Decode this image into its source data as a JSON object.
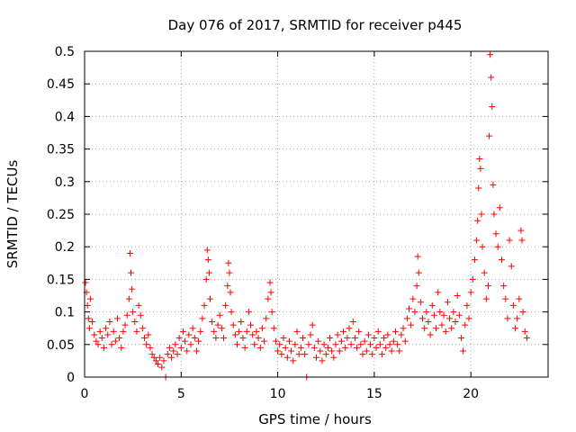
{
  "chart_data": {
    "type": "scatter",
    "title": "Day 076 of 2017, SRMTID for receiver p445",
    "xlabel": "GPS time / hours",
    "ylabel": "SRMTID / TECUs",
    "xlim": [
      0,
      24
    ],
    "ylim": [
      0,
      0.5
    ],
    "xticks": [
      0,
      5,
      10,
      15,
      20
    ],
    "xtick_labels": [
      "0",
      "5",
      "10",
      "15",
      "20"
    ],
    "yticks": [
      0,
      0.05,
      0.1,
      0.15,
      0.2,
      0.25,
      0.3,
      0.35,
      0.4,
      0.45,
      0.5
    ],
    "ytick_labels": [
      "0",
      "0.05",
      "0.1",
      "0.15",
      "0.2",
      "0.25",
      "0.3",
      "0.35",
      "0.4",
      "0.45",
      "0.5"
    ],
    "grid": true,
    "marker": "+",
    "series": [
      {
        "name": "SRMTID",
        "color": "#ff0000",
        "points": [
          [
            0.05,
            0.145
          ],
          [
            0.1,
            0.13
          ],
          [
            0.15,
            0.11
          ],
          [
            0.2,
            0.09
          ],
          [
            0.25,
            0.075
          ],
          [
            0.3,
            0.12
          ],
          [
            0.4,
            0.085
          ],
          [
            0.5,
            0.065
          ],
          [
            0.6,
            0.055
          ],
          [
            0.7,
            0.05
          ],
          [
            0.8,
            0.07
          ],
          [
            0.9,
            0.06
          ],
          [
            1.0,
            0.045
          ],
          [
            1.1,
            0.075
          ],
          [
            1.2,
            0.065
          ],
          [
            1.3,
            0.085
          ],
          [
            1.4,
            0.05
          ],
          [
            1.5,
            0.07
          ],
          [
            1.6,
            0.055
          ],
          [
            1.7,
            0.09
          ],
          [
            1.8,
            0.06
          ],
          [
            1.9,
            0.045
          ],
          [
            2.0,
            0.07
          ],
          [
            2.1,
            0.08
          ],
          [
            2.2,
            0.095
          ],
          [
            2.3,
            0.12
          ],
          [
            2.35,
            0.19
          ],
          [
            2.4,
            0.16
          ],
          [
            2.45,
            0.135
          ],
          [
            2.5,
            0.1
          ],
          [
            2.6,
            0.085
          ],
          [
            2.7,
            0.07
          ],
          [
            2.8,
            0.11
          ],
          [
            2.9,
            0.095
          ],
          [
            3.0,
            0.075
          ],
          [
            3.1,
            0.06
          ],
          [
            3.2,
            0.05
          ],
          [
            3.3,
            0.065
          ],
          [
            3.4,
            0.045
          ],
          [
            3.5,
            0.035
          ],
          [
            3.6,
            0.03
          ],
          [
            3.7,
            0.025
          ],
          [
            3.8,
            0.02
          ],
          [
            3.9,
            0.03
          ],
          [
            4.0,
            0.015
          ],
          [
            4.1,
            0.025
          ],
          [
            4.2,
            0.0
          ],
          [
            4.3,
            0.035
          ],
          [
            4.4,
            0.045
          ],
          [
            4.5,
            0.03
          ],
          [
            4.6,
            0.04
          ],
          [
            4.7,
            0.05
          ],
          [
            4.8,
            0.035
          ],
          [
            4.9,
            0.06
          ],
          [
            5.0,
            0.045
          ],
          [
            5.1,
            0.07
          ],
          [
            5.2,
            0.055
          ],
          [
            5.3,
            0.04
          ],
          [
            5.4,
            0.065
          ],
          [
            5.5,
            0.05
          ],
          [
            5.6,
            0.075
          ],
          [
            5.7,
            0.06
          ],
          [
            5.8,
            0.04
          ],
          [
            5.9,
            0.055
          ],
          [
            6.0,
            0.07
          ],
          [
            6.1,
            0.09
          ],
          [
            6.2,
            0.11
          ],
          [
            6.3,
            0.15
          ],
          [
            6.35,
            0.195
          ],
          [
            6.4,
            0.18
          ],
          [
            6.45,
            0.16
          ],
          [
            6.5,
            0.12
          ],
          [
            6.6,
            0.085
          ],
          [
            6.7,
            0.07
          ],
          [
            6.8,
            0.06
          ],
          [
            6.9,
            0.08
          ],
          [
            7.0,
            0.095
          ],
          [
            7.1,
            0.075
          ],
          [
            7.2,
            0.06
          ],
          [
            7.3,
            0.11
          ],
          [
            7.4,
            0.14
          ],
          [
            7.45,
            0.175
          ],
          [
            7.5,
            0.16
          ],
          [
            7.55,
            0.13
          ],
          [
            7.6,
            0.1
          ],
          [
            7.7,
            0.08
          ],
          [
            7.8,
            0.065
          ],
          [
            7.9,
            0.05
          ],
          [
            8.0,
            0.07
          ],
          [
            8.1,
            0.085
          ],
          [
            8.2,
            0.06
          ],
          [
            8.3,
            0.045
          ],
          [
            8.4,
            0.07
          ],
          [
            8.5,
            0.1
          ],
          [
            8.6,
            0.08
          ],
          [
            8.7,
            0.065
          ],
          [
            8.8,
            0.05
          ],
          [
            8.9,
            0.07
          ],
          [
            9.0,
            0.06
          ],
          [
            9.1,
            0.045
          ],
          [
            9.2,
            0.075
          ],
          [
            9.3,
            0.055
          ],
          [
            9.4,
            0.09
          ],
          [
            9.5,
            0.12
          ],
          [
            9.6,
            0.145
          ],
          [
            9.65,
            0.13
          ],
          [
            9.7,
            0.1
          ],
          [
            9.8,
            0.075
          ],
          [
            9.9,
            0.055
          ],
          [
            10.0,
            0.04
          ],
          [
            10.1,
            0.05
          ],
          [
            10.2,
            0.035
          ],
          [
            10.3,
            0.06
          ],
          [
            10.4,
            0.045
          ],
          [
            10.5,
            0.03
          ],
          [
            10.6,
            0.055
          ],
          [
            10.7,
            0.04
          ],
          [
            10.8,
            0.025
          ],
          [
            10.9,
            0.05
          ],
          [
            11.0,
            0.07
          ],
          [
            11.1,
            0.035
          ],
          [
            11.2,
            0.045
          ],
          [
            11.3,
            0.06
          ],
          [
            11.4,
            0.035
          ],
          [
            11.5,
            0.0
          ],
          [
            11.6,
            0.05
          ],
          [
            11.7,
            0.065
          ],
          [
            11.8,
            0.08
          ],
          [
            11.9,
            0.045
          ],
          [
            12.0,
            0.03
          ],
          [
            12.1,
            0.055
          ],
          [
            12.2,
            0.04
          ],
          [
            12.3,
            0.025
          ],
          [
            12.4,
            0.05
          ],
          [
            12.5,
            0.035
          ],
          [
            12.6,
            0.045
          ],
          [
            12.7,
            0.06
          ],
          [
            12.8,
            0.04
          ],
          [
            12.9,
            0.03
          ],
          [
            13.0,
            0.05
          ],
          [
            13.1,
            0.065
          ],
          [
            13.2,
            0.04
          ],
          [
            13.3,
            0.055
          ],
          [
            13.4,
            0.07
          ],
          [
            13.5,
            0.045
          ],
          [
            13.6,
            0.06
          ],
          [
            13.7,
            0.075
          ],
          [
            13.8,
            0.05
          ],
          [
            13.9,
            0.085
          ],
          [
            14.0,
            0.06
          ],
          [
            14.1,
            0.045
          ],
          [
            14.2,
            0.07
          ],
          [
            14.3,
            0.05
          ],
          [
            14.4,
            0.035
          ],
          [
            14.5,
            0.055
          ],
          [
            14.6,
            0.04
          ],
          [
            14.7,
            0.065
          ],
          [
            14.8,
            0.05
          ],
          [
            14.9,
            0.035
          ],
          [
            15.0,
            0.06
          ],
          [
            15.1,
            0.045
          ],
          [
            15.2,
            0.07
          ],
          [
            15.3,
            0.05
          ],
          [
            15.4,
            0.035
          ],
          [
            15.5,
            0.06
          ],
          [
            15.6,
            0.045
          ],
          [
            15.7,
            0.065
          ],
          [
            15.8,
            0.05
          ],
          [
            15.9,
            0.04
          ],
          [
            16.0,
            0.055
          ],
          [
            16.1,
            0.07
          ],
          [
            16.2,
            0.05
          ],
          [
            16.3,
            0.04
          ],
          [
            16.4,
            0.065
          ],
          [
            16.5,
            0.075
          ],
          [
            16.6,
            0.055
          ],
          [
            16.7,
            0.09
          ],
          [
            16.8,
            0.105
          ],
          [
            16.9,
            0.08
          ],
          [
            17.0,
            0.12
          ],
          [
            17.1,
            0.1
          ],
          [
            17.2,
            0.14
          ],
          [
            17.25,
            0.185
          ],
          [
            17.3,
            0.16
          ],
          [
            17.4,
            0.115
          ],
          [
            17.5,
            0.09
          ],
          [
            17.6,
            0.075
          ],
          [
            17.7,
            0.1
          ],
          [
            17.8,
            0.085
          ],
          [
            17.9,
            0.065
          ],
          [
            18.0,
            0.11
          ],
          [
            18.1,
            0.095
          ],
          [
            18.2,
            0.075
          ],
          [
            18.3,
            0.13
          ],
          [
            18.4,
            0.1
          ],
          [
            18.5,
            0.08
          ],
          [
            18.6,
            0.095
          ],
          [
            18.7,
            0.07
          ],
          [
            18.8,
            0.115
          ],
          [
            18.9,
            0.09
          ],
          [
            19.0,
            0.075
          ],
          [
            19.1,
            0.1
          ],
          [
            19.2,
            0.085
          ],
          [
            19.3,
            0.125
          ],
          [
            19.4,
            0.095
          ],
          [
            19.5,
            0.06
          ],
          [
            19.6,
            0.04
          ],
          [
            19.7,
            0.08
          ],
          [
            19.8,
            0.11
          ],
          [
            19.9,
            0.09
          ],
          [
            20.0,
            0.13
          ],
          [
            20.1,
            0.15
          ],
          [
            20.2,
            0.18
          ],
          [
            20.3,
            0.21
          ],
          [
            20.35,
            0.24
          ],
          [
            20.4,
            0.29
          ],
          [
            20.45,
            0.335
          ],
          [
            20.5,
            0.32
          ],
          [
            20.55,
            0.25
          ],
          [
            20.6,
            0.2
          ],
          [
            20.7,
            0.16
          ],
          [
            20.8,
            0.12
          ],
          [
            20.9,
            0.14
          ],
          [
            20.95,
            0.37
          ],
          [
            21.0,
            0.495
          ],
          [
            21.05,
            0.46
          ],
          [
            21.1,
            0.415
          ],
          [
            21.15,
            0.295
          ],
          [
            21.2,
            0.25
          ],
          [
            21.3,
            0.22
          ],
          [
            21.4,
            0.2
          ],
          [
            21.5,
            0.26
          ],
          [
            21.6,
            0.18
          ],
          [
            21.7,
            0.14
          ],
          [
            21.8,
            0.12
          ],
          [
            21.9,
            0.09
          ],
          [
            22.0,
            0.21
          ],
          [
            22.1,
            0.17
          ],
          [
            22.2,
            0.11
          ],
          [
            22.3,
            0.075
          ],
          [
            22.4,
            0.09
          ],
          [
            22.5,
            0.12
          ],
          [
            22.6,
            0.225
          ],
          [
            22.65,
            0.21
          ],
          [
            22.7,
            0.1
          ],
          [
            22.8,
            0.07
          ],
          [
            22.9,
            0.06
          ]
        ]
      }
    ]
  }
}
